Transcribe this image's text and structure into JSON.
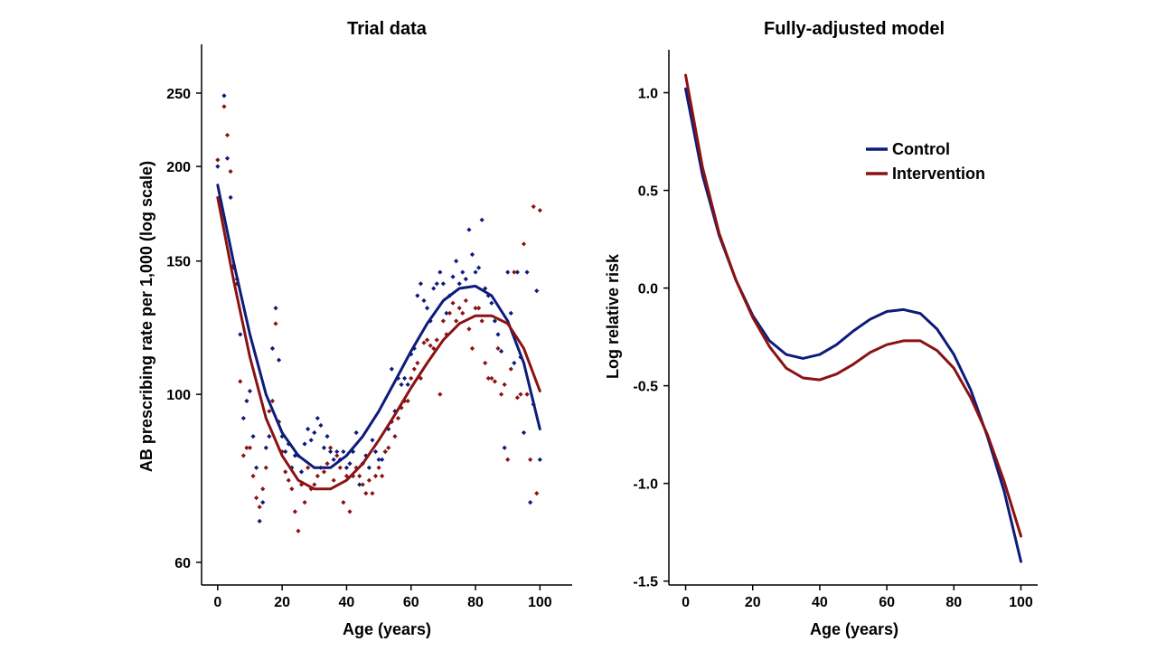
{
  "colors": {
    "control": "#0d1b7a",
    "intervention": "#8b1212"
  },
  "chart_data": [
    {
      "type": "scatter",
      "title": "Trial data",
      "xlabel": "Age (years)",
      "ylabel": "AB prescribing rate per 1,000 (log scale)",
      "xlim": [
        -5,
        110
      ],
      "ylim": [
        56,
        290
      ],
      "yscale": "log",
      "xticks": [
        0,
        20,
        40,
        60,
        80,
        100
      ],
      "yticks": [
        60,
        100,
        150,
        200,
        250
      ],
      "series": [
        {
          "name": "Control",
          "color": "#0d1b7a",
          "points": [
            [
              0,
              200
            ],
            [
              2,
              248
            ],
            [
              3,
              205
            ],
            [
              4,
              182
            ],
            [
              5,
              148
            ],
            [
              6,
              142
            ],
            [
              7,
              120
            ],
            [
              8,
              93
            ],
            [
              9,
              98
            ],
            [
              10,
              101
            ],
            [
              11,
              88
            ],
            [
              12,
              80
            ],
            [
              13,
              68
            ],
            [
              14,
              72
            ],
            [
              15,
              85
            ],
            [
              16,
              88
            ],
            [
              17,
              115
            ],
            [
              18,
              130
            ],
            [
              19,
              111
            ],
            [
              20,
              88
            ],
            [
              21,
              84
            ],
            [
              22,
              86
            ],
            [
              23,
              80
            ],
            [
              24,
              83
            ],
            [
              25,
              83
            ],
            [
              26,
              79
            ],
            [
              27,
              86
            ],
            [
              28,
              90
            ],
            [
              29,
              87
            ],
            [
              30,
              89
            ],
            [
              31,
              93
            ],
            [
              32,
              91
            ],
            [
              33,
              85
            ],
            [
              34,
              88
            ],
            [
              35,
              84
            ],
            [
              36,
              82
            ],
            [
              37,
              84
            ],
            [
              38,
              82
            ],
            [
              39,
              84
            ],
            [
              40,
              80
            ],
            [
              41,
              81
            ],
            [
              42,
              84
            ],
            [
              43,
              89
            ],
            [
              44,
              76
            ],
            [
              45,
              81
            ],
            [
              46,
              83
            ],
            [
              47,
              80
            ],
            [
              48,
              87
            ],
            [
              49,
              84
            ],
            [
              50,
              82
            ],
            [
              51,
              82
            ],
            [
              52,
              84
            ],
            [
              53,
              90
            ],
            [
              54,
              108
            ],
            [
              55,
              95
            ],
            [
              56,
              105
            ],
            [
              57,
              103
            ],
            [
              58,
              105
            ],
            [
              59,
              103
            ],
            [
              60,
              113
            ],
            [
              61,
              115
            ],
            [
              62,
              135
            ],
            [
              63,
              140
            ],
            [
              64,
              133
            ],
            [
              65,
              130
            ],
            [
              66,
              125
            ],
            [
              67,
              138
            ],
            [
              68,
              140
            ],
            [
              69,
              145
            ],
            [
              70,
              140
            ],
            [
              71,
              128
            ],
            [
              72,
              135
            ],
            [
              73,
              143
            ],
            [
              74,
              150
            ],
            [
              75,
              140
            ],
            [
              76,
              145
            ],
            [
              77,
              142
            ],
            [
              78,
              165
            ],
            [
              79,
              153
            ],
            [
              80,
              145
            ],
            [
              81,
              147
            ],
            [
              82,
              170
            ],
            [
              83,
              138
            ],
            [
              84,
              135
            ],
            [
              85,
              132
            ],
            [
              86,
              125
            ],
            [
              87,
              120
            ],
            [
              88,
              114
            ],
            [
              89,
              85
            ],
            [
              90,
              145
            ],
            [
              91,
              128
            ],
            [
              92,
              110
            ],
            [
              93,
              145
            ],
            [
              94,
              112
            ],
            [
              95,
              89
            ],
            [
              96,
              145
            ],
            [
              97,
              72
            ],
            [
              98,
              97
            ],
            [
              99,
              137
            ],
            [
              100,
              82
            ]
          ]
        },
        {
          "name": "Intervention",
          "color": "#8b1212",
          "points": [
            [
              0,
              204
            ],
            [
              2,
              240
            ],
            [
              3,
              220
            ],
            [
              4,
              197
            ],
            [
              5,
              147
            ],
            [
              6,
              140
            ],
            [
              7,
              104
            ],
            [
              8,
              83
            ],
            [
              9,
              85
            ],
            [
              10,
              85
            ],
            [
              11,
              78
            ],
            [
              12,
              73
            ],
            [
              13,
              71
            ],
            [
              14,
              75
            ],
            [
              15,
              80
            ],
            [
              16,
              95
            ],
            [
              17,
              98
            ],
            [
              18,
              124
            ],
            [
              19,
              92
            ],
            [
              20,
              84
            ],
            [
              21,
              79
            ],
            [
              22,
              77
            ],
            [
              23,
              75
            ],
            [
              24,
              70
            ],
            [
              25,
              66
            ],
            [
              26,
              76
            ],
            [
              27,
              72
            ],
            [
              28,
              80
            ],
            [
              29,
              75
            ],
            [
              30,
              76
            ],
            [
              31,
              78
            ],
            [
              32,
              80
            ],
            [
              33,
              79
            ],
            [
              34,
              81
            ],
            [
              35,
              85
            ],
            [
              36,
              77
            ],
            [
              37,
              83
            ],
            [
              38,
              80
            ],
            [
              39,
              72
            ],
            [
              40,
              78
            ],
            [
              41,
              70
            ],
            [
              42,
              78
            ],
            [
              43,
              80
            ],
            [
              44,
              78
            ],
            [
              45,
              76
            ],
            [
              46,
              74
            ],
            [
              47,
              77
            ],
            [
              48,
              74
            ],
            [
              49,
              78
            ],
            [
              50,
              80
            ],
            [
              51,
              78
            ],
            [
              52,
              84
            ],
            [
              53,
              85
            ],
            [
              54,
              92
            ],
            [
              55,
              88
            ],
            [
              56,
              93
            ],
            [
              57,
              96
            ],
            [
              58,
              98
            ],
            [
              59,
              98
            ],
            [
              60,
              105
            ],
            [
              61,
              108
            ],
            [
              62,
              110
            ],
            [
              63,
              105
            ],
            [
              64,
              117
            ],
            [
              65,
              118
            ],
            [
              66,
              116
            ],
            [
              67,
              115
            ],
            [
              68,
              118
            ],
            [
              69,
              100
            ],
            [
              70,
              125
            ],
            [
              71,
              120
            ],
            [
              72,
              128
            ],
            [
              73,
              132
            ],
            [
              74,
              125
            ],
            [
              75,
              130
            ],
            [
              76,
              128
            ],
            [
              77,
              133
            ],
            [
              78,
              122
            ],
            [
              79,
              115
            ],
            [
              80,
              130
            ],
            [
              81,
              130
            ],
            [
              82,
              125
            ],
            [
              83,
              110
            ],
            [
              84,
              105
            ],
            [
              85,
              105
            ],
            [
              86,
              104
            ],
            [
              87,
              115
            ],
            [
              88,
              100
            ],
            [
              89,
              103
            ],
            [
              90,
              82
            ],
            [
              91,
              108
            ],
            [
              92,
              145
            ],
            [
              93,
              99
            ],
            [
              94,
              100
            ],
            [
              95,
              158
            ],
            [
              96,
              100
            ],
            [
              97,
              82
            ],
            [
              98,
              177
            ],
            [
              99,
              74
            ],
            [
              100,
              175
            ]
          ]
        }
      ],
      "fits": [
        {
          "name": "Control",
          "color": "#0d1b7a",
          "x": [
            0,
            5,
            10,
            15,
            20,
            25,
            30,
            35,
            40,
            45,
            50,
            55,
            60,
            65,
            70,
            75,
            80,
            85,
            90,
            95,
            100
          ],
          "y": [
            189,
            149,
            120,
            100,
            89,
            83,
            80,
            80,
            83,
            88,
            95,
            104,
            114,
            124,
            133,
            138,
            139,
            135,
            125,
            110,
            90
          ]
        },
        {
          "name": "Intervention",
          "color": "#8b1212",
          "x": [
            0,
            5,
            10,
            15,
            20,
            25,
            30,
            35,
            40,
            45,
            50,
            55,
            60,
            65,
            70,
            75,
            80,
            85,
            90,
            95,
            100
          ],
          "y": [
            182,
            141,
            112,
            93,
            83,
            77,
            75,
            75,
            77,
            81,
            87,
            94,
            102,
            110,
            118,
            124,
            127,
            127,
            124,
            115,
            101
          ]
        }
      ]
    },
    {
      "type": "line",
      "title": "Fully-adjusted model",
      "xlabel": "Age (years)",
      "ylabel": "Log relative risk",
      "xlim": [
        -5,
        105
      ],
      "ylim": [
        -1.52,
        1.22
      ],
      "xticks": [
        0,
        20,
        40,
        60,
        80,
        100
      ],
      "yticks": [
        1.0,
        0.5,
        0.0,
        -0.5,
        -1.0,
        -1.5
      ],
      "ytick_labels": [
        "1.0",
        "0.5",
        "0.0",
        "-0.5",
        "-1.0",
        "-1.5"
      ],
      "legend": {
        "position": "top-right",
        "entries": [
          "Control",
          "Intervention"
        ]
      },
      "series": [
        {
          "name": "Control",
          "color": "#0d1b7a",
          "x": [
            0,
            5,
            10,
            15,
            20,
            25,
            30,
            35,
            40,
            45,
            50,
            55,
            60,
            65,
            70,
            75,
            80,
            85,
            90,
            95,
            100
          ],
          "y": [
            1.02,
            0.58,
            0.27,
            0.04,
            -0.14,
            -0.27,
            -0.34,
            -0.36,
            -0.34,
            -0.29,
            -0.22,
            -0.16,
            -0.12,
            -0.11,
            -0.13,
            -0.21,
            -0.34,
            -0.52,
            -0.76,
            -1.04,
            -1.4
          ]
        },
        {
          "name": "Intervention",
          "color": "#8b1212",
          "x": [
            0,
            5,
            10,
            15,
            20,
            25,
            30,
            35,
            40,
            45,
            50,
            55,
            60,
            65,
            70,
            75,
            80,
            85,
            90,
            95,
            100
          ],
          "y": [
            1.09,
            0.62,
            0.28,
            0.04,
            -0.15,
            -0.3,
            -0.41,
            -0.46,
            -0.47,
            -0.44,
            -0.39,
            -0.33,
            -0.29,
            -0.27,
            -0.27,
            -0.32,
            -0.41,
            -0.56,
            -0.75,
            -0.99,
            -1.27
          ]
        }
      ]
    }
  ]
}
